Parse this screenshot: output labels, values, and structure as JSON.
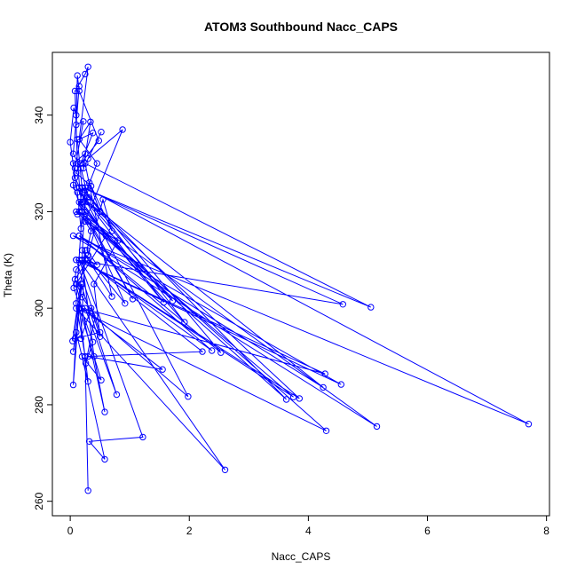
{
  "chart_data": {
    "type": "line",
    "title": "ATOM3 Southbound Nacc_CAPS",
    "xlabel": "Nacc_CAPS",
    "ylabel": "Theta (K)",
    "xlim": [
      -0.3,
      8.05
    ],
    "ylim": [
      257,
      353
    ],
    "xticks": [
      0,
      2,
      4,
      6,
      8
    ],
    "yticks": [
      260,
      280,
      300,
      320,
      340
    ],
    "grid": false,
    "legend": "none",
    "color": "#0000ff",
    "markers": "open-circle",
    "series": [
      {
        "points": [
          [
            0.3,
            262.2
          ],
          [
            0.25,
            290.0
          ],
          [
            0.1,
            301.0
          ],
          [
            0.2,
            320.0
          ],
          [
            0.12,
            330.0
          ],
          [
            0.08,
            345.0
          ],
          [
            0.25,
            348.5
          ],
          [
            0.3,
            350.0
          ],
          [
            0.15,
            335.0
          ],
          [
            0.45,
            330.0
          ],
          [
            0.2,
            322.0
          ],
          [
            0.6,
            315.0
          ],
          [
            0.1,
            305.0
          ],
          [
            0.58,
            278.5
          ],
          [
            0.4,
            290.0
          ],
          [
            0.2,
            310.0
          ],
          [
            0.25,
            325.0
          ],
          [
            7.7,
            276.0
          ],
          [
            0.05,
            315.0
          ],
          [
            5.15,
            275.5
          ],
          [
            0.15,
            320.0
          ],
          [
            4.3,
            274.6
          ],
          [
            0.1,
            300.0
          ],
          [
            2.6,
            266.5
          ],
          [
            0.15,
            310.0
          ],
          [
            1.22,
            273.3
          ],
          [
            0.32,
            272.4
          ],
          [
            0.58,
            268.7
          ],
          [
            0.2,
            290.0
          ],
          [
            0.52,
            285.1
          ],
          [
            0.15,
            300.0
          ],
          [
            0.3,
            284.8
          ],
          [
            0.1,
            295.0
          ],
          [
            0.05,
            284.1
          ],
          [
            0.18,
            305.0
          ],
          [
            0.78,
            282.1
          ],
          [
            0.25,
            300.0
          ],
          [
            1.98,
            281.7
          ],
          [
            0.15,
            325.0
          ],
          [
            3.63,
            281.1
          ],
          [
            0.1,
            320.0
          ],
          [
            3.75,
            281.6
          ],
          [
            0.2,
            310.0
          ],
          [
            3.85,
            281.3
          ],
          [
            0.3,
            322.0
          ],
          [
            4.25,
            283.6
          ],
          [
            0.15,
            315.0
          ],
          [
            4.55,
            284.2
          ],
          [
            0.1,
            310.0
          ],
          [
            4.28,
            286.4
          ],
          [
            0.2,
            300.0
          ],
          [
            1.55,
            287.3
          ],
          [
            0.3,
            290.0
          ],
          [
            2.22,
            291.0
          ],
          [
            0.25,
            310.0
          ],
          [
            2.38,
            291.2
          ],
          [
            0.15,
            315.0
          ],
          [
            2.53,
            290.8
          ],
          [
            0.2,
            325.0
          ],
          [
            1.92,
            297.1
          ],
          [
            0.25,
            320.0
          ],
          [
            1.72,
            301.5
          ],
          [
            0.1,
            325.0
          ],
          [
            1.57,
            301.2
          ],
          [
            0.15,
            322.0
          ],
          [
            1.05,
            301.9
          ],
          [
            0.3,
            318.0
          ],
          [
            0.92,
            301.0
          ],
          [
            0.2,
            312.0
          ],
          [
            0.7,
            302.4
          ],
          [
            0.25,
            330.0
          ],
          [
            5.05,
            300.2
          ],
          [
            0.2,
            325.0
          ],
          [
            4.58,
            300.8
          ],
          [
            0.1,
            310.0
          ],
          [
            0.5,
            295.0
          ],
          [
            0.08,
            293.7
          ],
          [
            0.15,
            300.0
          ],
          [
            0.05,
            291.0
          ],
          [
            0.2,
            305.0
          ],
          [
            0.04,
            293.2
          ],
          [
            0.25,
            312.0
          ],
          [
            0.18,
            293.7
          ],
          [
            0.35,
            300.0
          ],
          [
            0.5,
            294.1
          ],
          [
            0.4,
            305.0
          ],
          [
            0.8,
            314.0
          ],
          [
            0.25,
            318.0
          ],
          [
            0.88,
            337.0
          ],
          [
            0.3,
            331.0
          ],
          [
            0.52,
            336.5
          ],
          [
            0.22,
            329.0
          ],
          [
            0.34,
            338.6
          ],
          [
            0.15,
            335.0
          ],
          [
            0.38,
            336.3
          ],
          [
            0.18,
            330.0
          ],
          [
            0.48,
            334.7
          ],
          [
            0.15,
            345.0
          ],
          [
            0.12,
            348.2
          ],
          [
            0.1,
            340.0
          ],
          [
            0.06,
            341.5
          ],
          [
            0.0,
            334.4
          ],
          [
            0.08,
            327.0
          ],
          [
            0.2,
            324.0
          ],
          [
            0.12,
            319.5
          ],
          [
            0.3,
            323.0
          ],
          [
            0.18,
            329.0
          ],
          [
            0.05,
            332.0
          ],
          [
            0.15,
            346.0
          ],
          [
            0.1,
            338.0
          ],
          [
            0.22,
            338.7
          ],
          [
            0.08,
            329.0
          ],
          [
            0.05,
            325.5
          ],
          [
            0.25,
            318.0
          ],
          [
            0.35,
            316.0
          ],
          [
            0.28,
            312.0
          ],
          [
            0.45,
            309.0
          ],
          [
            0.3,
            310.0
          ],
          [
            0.08,
            306.0
          ],
          [
            0.2,
            302.3
          ],
          [
            0.42,
            298.4
          ],
          [
            0.26,
            288.6
          ],
          [
            0.38,
            293.0
          ],
          [
            0.06,
            304.2
          ],
          [
            0.1,
            308.0
          ],
          [
            0.3,
            311.0
          ],
          [
            0.55,
            322.5
          ],
          [
            0.7,
            316.0
          ],
          [
            0.35,
            325.3
          ],
          [
            0.1,
            328.0
          ],
          [
            0.25,
            332.0
          ],
          [
            0.05,
            330.0
          ],
          [
            0.12,
            324.0
          ],
          [
            0.18,
            316.5
          ],
          [
            0.32,
            326.0
          ],
          [
            0.5,
            320.0
          ],
          [
            0.22,
            322.0
          ],
          [
            0.12,
            335.0
          ]
        ]
      }
    ]
  }
}
